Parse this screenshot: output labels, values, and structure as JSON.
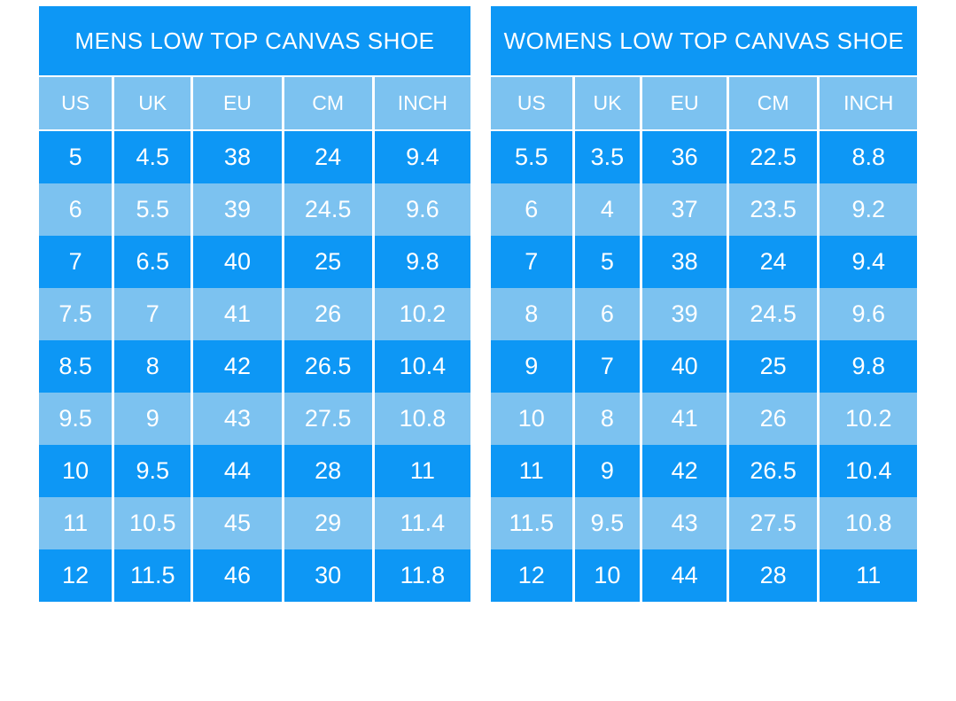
{
  "colors": {
    "row_dark": "#0d97f5",
    "row_light": "#7cc2f0",
    "text": "#ffffff",
    "background": "#ffffff"
  },
  "chart_data": [
    {
      "type": "table",
      "title": "MENS LOW TOP CANVAS SHOE",
      "columns": [
        "US",
        "UK",
        "EU",
        "CM",
        "INCH"
      ],
      "rows": [
        [
          "5",
          "4.5",
          "38",
          "24",
          "9.4"
        ],
        [
          "6",
          "5.5",
          "39",
          "24.5",
          "9.6"
        ],
        [
          "7",
          "6.5",
          "40",
          "25",
          "9.8"
        ],
        [
          "7.5",
          "7",
          "41",
          "26",
          "10.2"
        ],
        [
          "8.5",
          "8",
          "42",
          "26.5",
          "10.4"
        ],
        [
          "9.5",
          "9",
          "43",
          "27.5",
          "10.8"
        ],
        [
          "10",
          "9.5",
          "44",
          "28",
          "11"
        ],
        [
          "11",
          "10.5",
          "45",
          "29",
          "11.4"
        ],
        [
          "12",
          "11.5",
          "46",
          "30",
          "11.8"
        ]
      ]
    },
    {
      "type": "table",
      "title": "WOMENS LOW TOP CANVAS SHOE",
      "columns": [
        "US",
        "UK",
        "EU",
        "CM",
        "INCH"
      ],
      "rows": [
        [
          "5.5",
          "3.5",
          "36",
          "22.5",
          "8.8"
        ],
        [
          "6",
          "4",
          "37",
          "23.5",
          "9.2"
        ],
        [
          "7",
          "5",
          "38",
          "24",
          "9.4"
        ],
        [
          "8",
          "6",
          "39",
          "24.5",
          "9.6"
        ],
        [
          "9",
          "7",
          "40",
          "25",
          "9.8"
        ],
        [
          "10",
          "8",
          "41",
          "26",
          "10.2"
        ],
        [
          "11",
          "9",
          "42",
          "26.5",
          "10.4"
        ],
        [
          "11.5",
          "9.5",
          "43",
          "27.5",
          "10.8"
        ],
        [
          "12",
          "10",
          "44",
          "28",
          "11"
        ]
      ]
    }
  ]
}
